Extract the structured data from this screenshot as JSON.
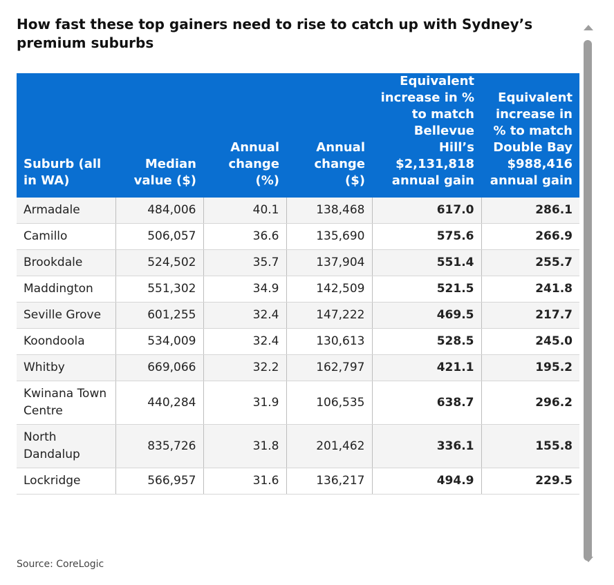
{
  "title": "How fast these top gainers need to rise to catch up with Sydney’s premium suburbs",
  "colors": {
    "header_bg": "#0a6fd1",
    "header_text": "#ffffff"
  },
  "table": {
    "headers": [
      "Suburb (all in WA)",
      "Median value ($)",
      "Annual change (%)",
      "Annual change ($)",
      "Equivalent increase in % to match Bellevue Hill’s $2,131,818 annual gain",
      "Equivalent increase in % to match Double Bay $988,416 annual gain"
    ],
    "rows": [
      [
        "Armadale",
        "484,006",
        "40.1",
        "138,468",
        "617.0",
        "286.1"
      ],
      [
        "Camillo",
        "506,057",
        "36.6",
        "135,690",
        "575.6",
        "266.9"
      ],
      [
        "Brookdale",
        "524,502",
        "35.7",
        "137,904",
        "551.4",
        "255.7"
      ],
      [
        "Maddington",
        "551,302",
        "34.9",
        "142,509",
        "521.5",
        "241.8"
      ],
      [
        "Seville Grove",
        "601,255",
        "32.4",
        "147,222",
        "469.5",
        "217.7"
      ],
      [
        "Koondoola",
        "534,009",
        "32.4",
        "130,613",
        "528.5",
        "245.0"
      ],
      [
        "Whitby",
        "669,066",
        "32.2",
        "162,797",
        "421.1",
        "195.2"
      ],
      [
        "Kwinana Town Centre",
        "440,284",
        "31.9",
        "106,535",
        "638.7",
        "296.2"
      ],
      [
        "North Dandalup",
        "835,726",
        "31.8",
        "201,462",
        "336.1",
        "155.8"
      ],
      [
        "Lockridge",
        "566,957",
        "31.6",
        "136,217",
        "494.9",
        "229.5"
      ]
    ]
  },
  "source": "Source: CoreLogic",
  "scrollbar": {
    "up_icon": "triangle-up",
    "down_icon": "triangle-down"
  }
}
